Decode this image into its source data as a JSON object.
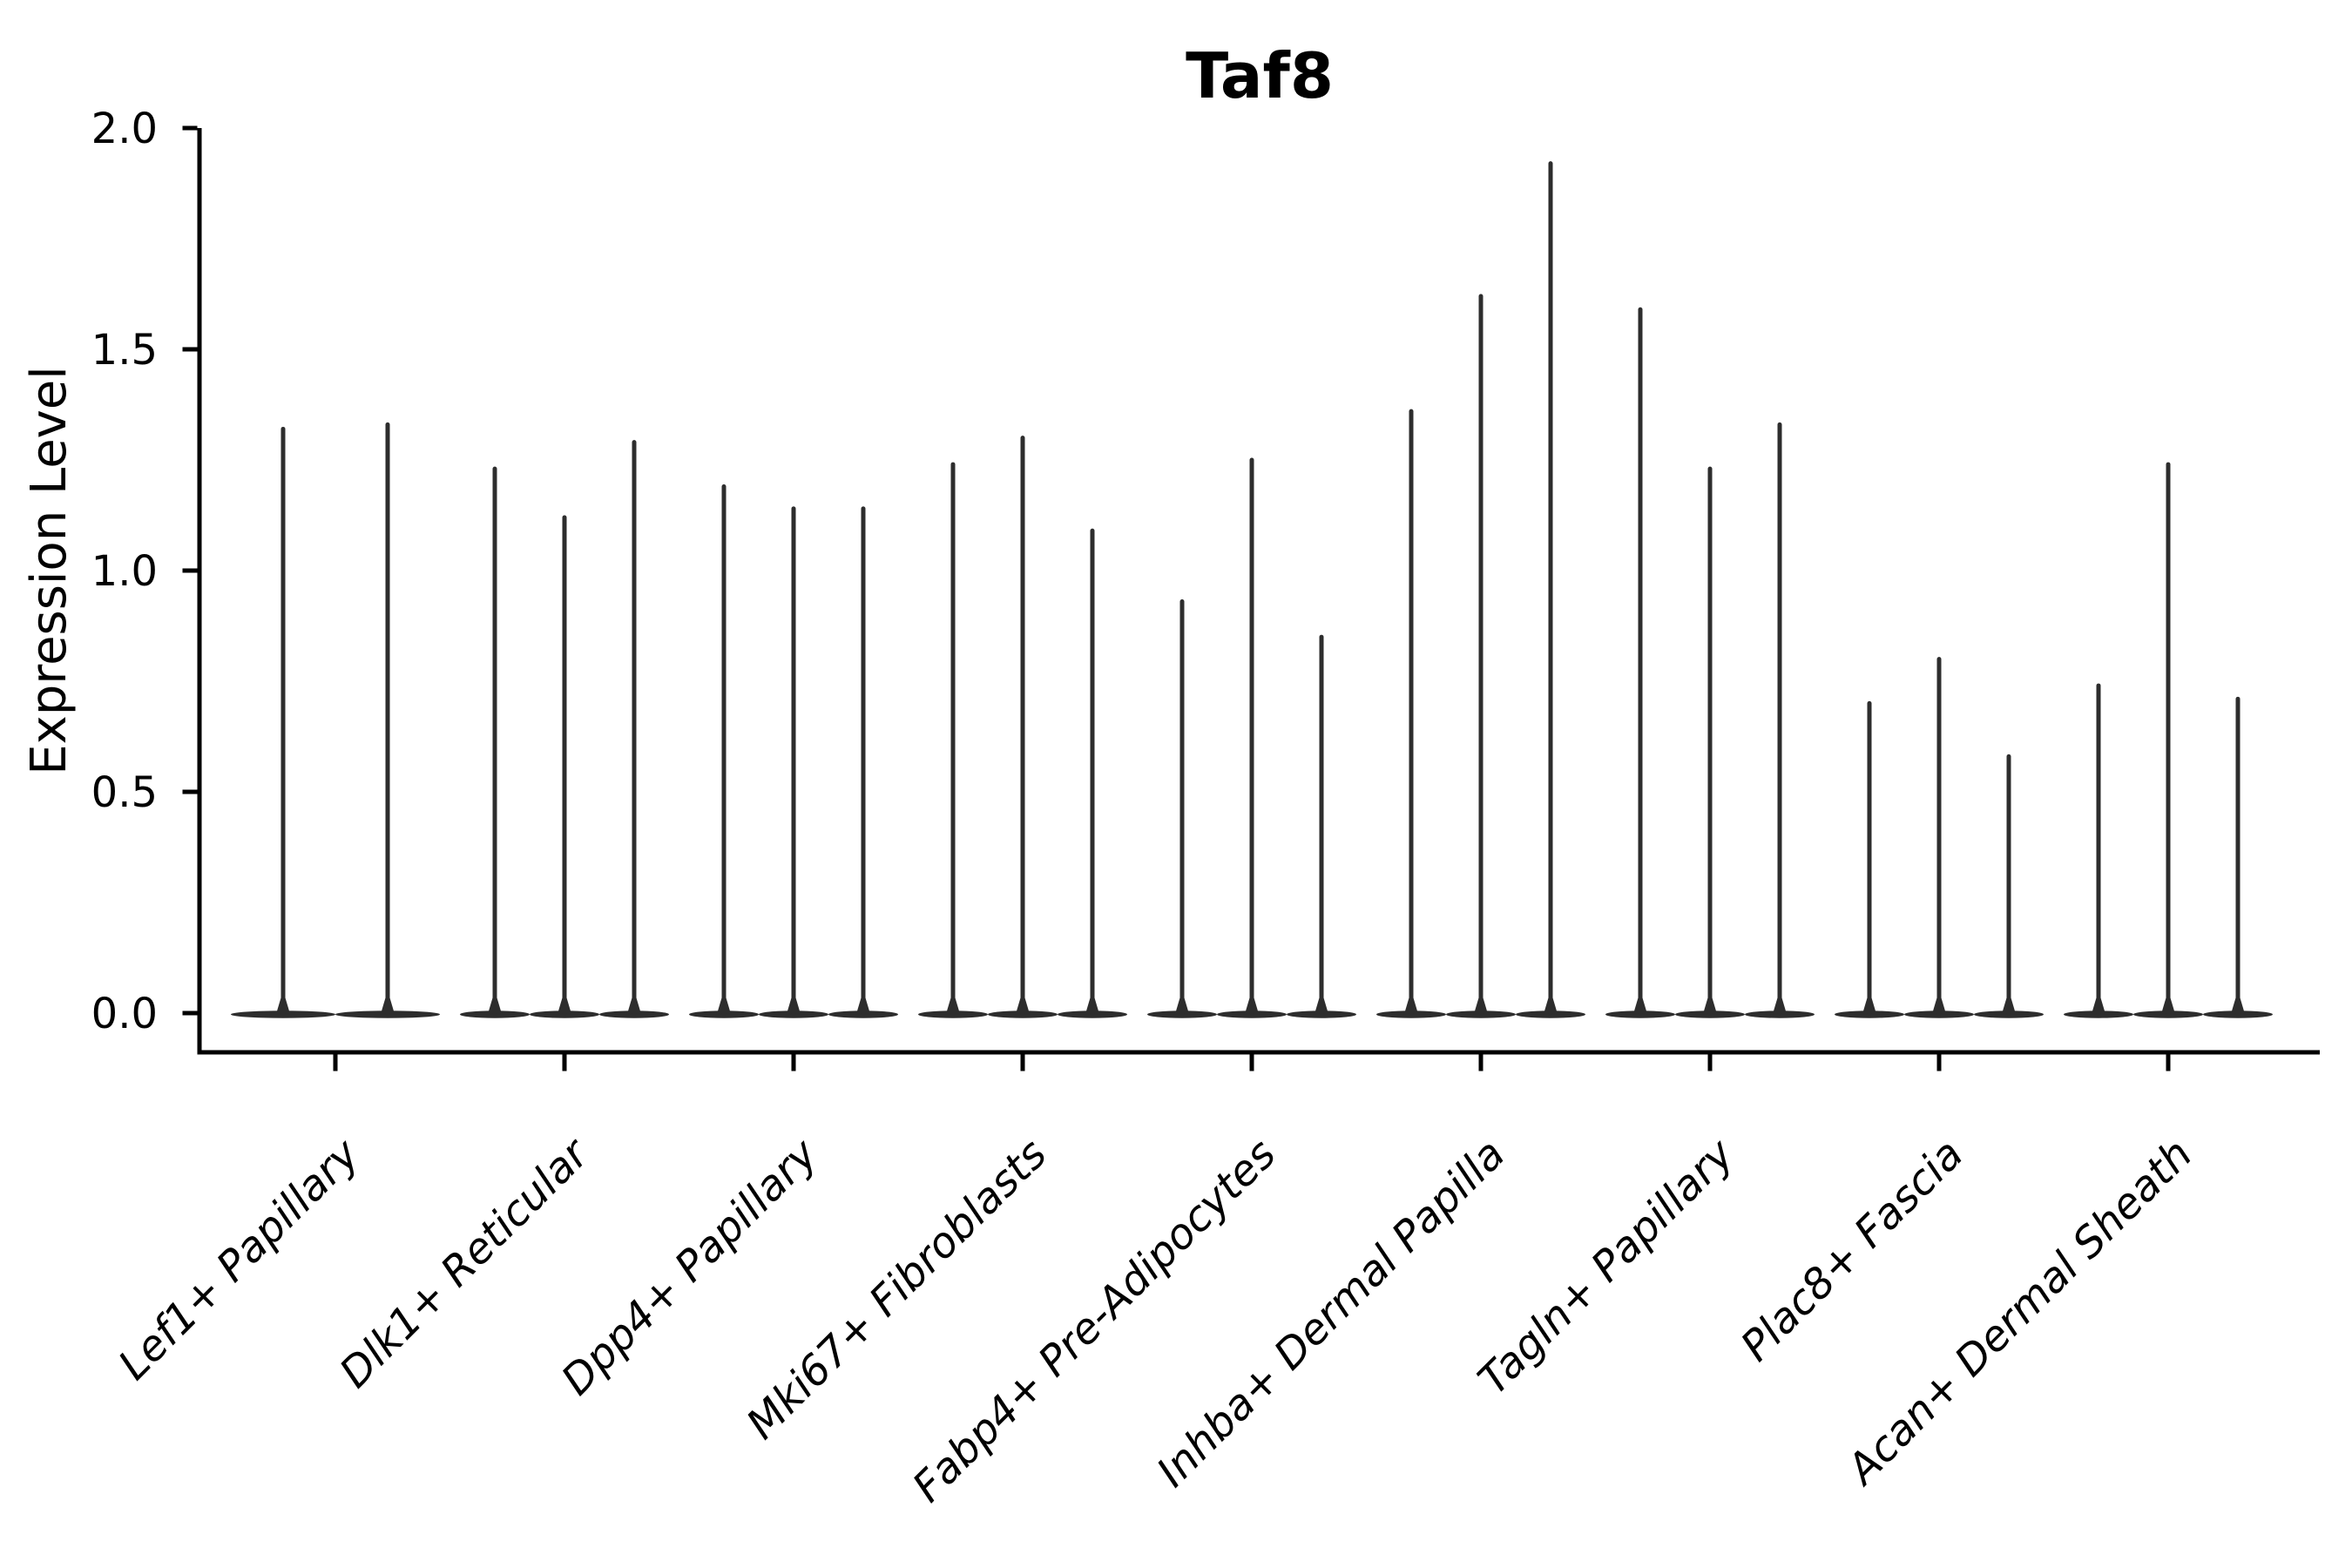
{
  "chart_data": {
    "type": "violin",
    "title": "Taf8",
    "xlabel": "",
    "ylabel": "Expression Level",
    "ylim": [
      0.0,
      2.0
    ],
    "yticks": [
      0.0,
      0.5,
      1.0,
      1.5,
      2.0
    ],
    "ytick_labels": [
      "0.0",
      "0.5",
      "1.0",
      "1.5",
      "2.0"
    ],
    "grid": false,
    "legend": "none",
    "x_tick_rotation_deg": 45,
    "categories": [
      "Lef1+ Papillary",
      "Dlk1+ Reticular",
      "Dpp4+ Papillary",
      "Mki67+ Fibroblasts",
      "Fabp4+ Pre-Adipocytes",
      "Inhba+ Dermal Papilla",
      "Tagln+ Papillary",
      "Plac8+ Fascia",
      "Acan+ Dermal Sheath"
    ],
    "series": [
      {
        "category": "Lef1+ Papillary",
        "violin_maxima": [
          1.32,
          1.33
        ]
      },
      {
        "category": "Dlk1+ Reticular",
        "violin_maxima": [
          1.23,
          1.12,
          1.29
        ]
      },
      {
        "category": "Dpp4+ Papillary",
        "violin_maxima": [
          1.19,
          1.14,
          1.14
        ]
      },
      {
        "category": "Mki67+ Fibroblasts",
        "violin_maxima": [
          1.24,
          1.3,
          1.09
        ]
      },
      {
        "category": "Fabp4+ Pre-Adipocytes",
        "violin_maxima": [
          0.93,
          1.25,
          0.85
        ]
      },
      {
        "category": "Inhba+ Dermal Papilla",
        "violin_maxima": [
          1.36,
          1.62,
          1.92
        ]
      },
      {
        "category": "Tagln+ Papillary",
        "violin_maxima": [
          1.59,
          1.23,
          1.33
        ]
      },
      {
        "category": "Plac8+ Fascia",
        "violin_maxima": [
          0.7,
          0.8,
          0.58
        ]
      },
      {
        "category": "Acan+ Dermal Sheath",
        "violin_maxima": [
          0.74,
          1.24,
          0.71
        ]
      }
    ],
    "violin_style": "zero-inflated: wide flat base at expression 0 with a single thin density spike rising to the maximum expression value",
    "colors": {
      "violin": "#2d2d2d",
      "axis": "#000000",
      "text": "#000000",
      "background": "#ffffff"
    }
  }
}
